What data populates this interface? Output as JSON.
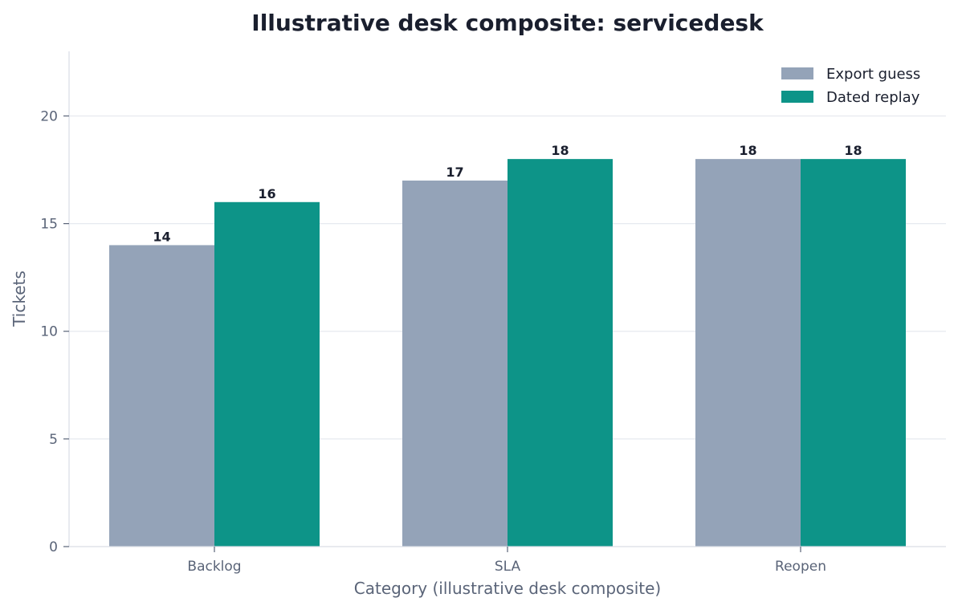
{
  "chart_data": {
    "type": "bar",
    "title": "Illustrative desk composite: servicedesk",
    "xlabel": "Category (illustrative desk composite)",
    "ylabel": "Tickets",
    "categories": [
      "Backlog",
      "SLA",
      "Reopen"
    ],
    "series": [
      {
        "name": "Export guess",
        "values": [
          14,
          17,
          18
        ],
        "color": "#94a3b8"
      },
      {
        "name": "Dated replay",
        "values": [
          16,
          18,
          18
        ],
        "color": "#0d9488"
      }
    ],
    "ylim": [
      0,
      23
    ],
    "yticks": [
      0,
      5,
      10,
      15,
      20
    ],
    "grid": "horizontal",
    "legend": "top-right"
  }
}
